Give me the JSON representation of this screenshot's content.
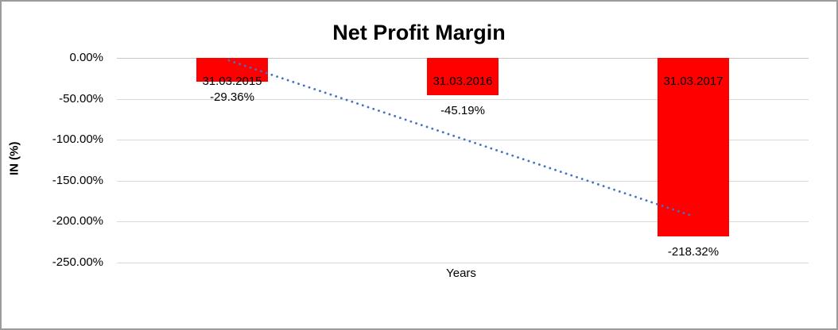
{
  "chart_data": {
    "type": "bar",
    "title": "Net Profit Margin",
    "xlabel": "Years",
    "ylabel": "IN (%)",
    "categories": [
      "31.03.2015",
      "31.03.2016",
      "31.03.2017"
    ],
    "values": [
      -29.36,
      -45.19,
      -218.32
    ],
    "data_labels": [
      "-29.36%",
      "-45.19%",
      "-218.32%"
    ],
    "y_ticks": [
      {
        "value": 0,
        "label": "0.00%"
      },
      {
        "value": -50,
        "label": "-50.00%"
      },
      {
        "value": -100,
        "label": "-100.00%"
      },
      {
        "value": -150,
        "label": "-150.00%"
      },
      {
        "value": -200,
        "label": "-200.00%"
      },
      {
        "value": -250,
        "label": "-250.00%"
      }
    ],
    "ylim": [
      -250,
      0
    ],
    "grid": true,
    "legend_position": "none",
    "bar_color": "#FF0000",
    "trendline": {
      "type": "linear",
      "style": "dotted",
      "color": "#4472C4",
      "start_value": -3.1,
      "end_value": -192.1
    }
  }
}
